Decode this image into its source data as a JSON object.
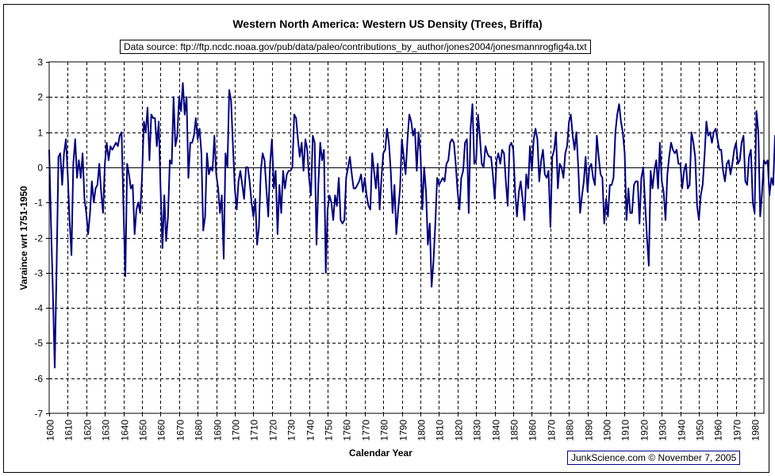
{
  "chart_data": {
    "type": "line",
    "title": "Western North America: Western US Density (Trees, Briffa)",
    "subtitle": "Data source: ftp://ftp.ncdc.noaa.gov/pub/data/paleo/contributions_by_author/jones2004/jonesmannrogfig4a.txt",
    "xlabel": "Calendar Year",
    "ylabel": "Varaince  wrt 1751-1950",
    "xlim": [
      1600,
      1985
    ],
    "ylim": [
      -7,
      3
    ],
    "grid": true,
    "x_ticks": [
      1600,
      1610,
      1620,
      1630,
      1640,
      1650,
      1660,
      1670,
      1680,
      1690,
      1700,
      1710,
      1720,
      1730,
      1740,
      1750,
      1760,
      1770,
      1780,
      1790,
      1800,
      1810,
      1820,
      1830,
      1840,
      1850,
      1860,
      1870,
      1880,
      1890,
      1900,
      1910,
      1920,
      1930,
      1940,
      1950,
      1960,
      1970,
      1980
    ],
    "y_ticks": [
      3,
      2,
      1,
      0,
      -1,
      -2,
      -3,
      -4,
      -5,
      -6,
      -7
    ],
    "line_color": "#000080",
    "series": [
      {
        "name": "Western US Density",
        "x_start": 1600,
        "step": 1,
        "values": [
          0.5,
          -1.6,
          -3.6,
          -5.7,
          -2.8,
          0.3,
          0.4,
          -0.5,
          0.4,
          0.8,
          -0.2,
          -1.5,
          -2.5,
          0.1,
          0.8,
          -0.3,
          0.2,
          -0.3,
          0.4,
          -0.9,
          -1.3,
          -1.9,
          -1.3,
          -0.4,
          -1.0,
          -0.6,
          -0.5,
          0.1,
          -0.7,
          -1.3,
          0.1,
          0.7,
          0.2,
          0.6,
          0.5,
          0.6,
          0.7,
          0.6,
          0.9,
          1.0,
          -1.1,
          -3.1,
          0.1,
          -0.2,
          -0.6,
          -0.5,
          -1.9,
          -1.2,
          -1.0,
          -1.3,
          -0.3,
          1.3,
          1.0,
          1.7,
          0.2,
          1.5,
          1.4,
          1.4,
          0.6,
          1.3,
          -0.6,
          -2.3,
          -0.8,
          -2.1,
          -1.4,
          0.2,
          0.1,
          2.0,
          0.6,
          0.9,
          2.0,
          1.6,
          2.4,
          1.5,
          2.0,
          -0.3,
          0.7,
          0.7,
          0.9,
          1.4,
          0.8,
          1.1,
          0.4,
          -1.8,
          -1.4,
          0.4,
          -0.2,
          0.0,
          -0.1,
          0.9,
          -0.2,
          -0.6,
          -1.3,
          -0.8,
          -2.6,
          0.4,
          0.0,
          2.2,
          1.9,
          0.6,
          -0.6,
          -1.2,
          -0.4,
          -0.1,
          -0.5,
          -0.9,
          0.0,
          0.0,
          -0.4,
          -1.0,
          -1.4,
          -0.9,
          -2.2,
          -1.7,
          -0.1,
          0.4,
          0.2,
          -0.6,
          -1.4,
          0.1,
          0.8,
          -0.6,
          -0.1,
          -1.9,
          -0.5,
          -1.3,
          -0.1,
          -0.6,
          -0.2,
          -0.1,
          -0.1,
          0.0,
          1.5,
          1.4,
          0.8,
          0.3,
          0.7,
          -0.1,
          0.8,
          0.5,
          -0.3,
          -0.8,
          0.9,
          0.7,
          -2.2,
          -0.5,
          0.7,
          0.2,
          0.5,
          -3.0,
          -1.2,
          -0.8,
          -1.0,
          -1.5,
          -0.8,
          -1.1,
          -0.3,
          -1.5,
          -1.6,
          -1.5,
          -0.3,
          0.0,
          0.3,
          -0.2,
          -0.6,
          -0.6,
          -0.5,
          -0.4,
          -0.2,
          -0.7,
          -0.3,
          -0.8,
          -1.1,
          -1.2,
          0.4,
          -0.1,
          -0.6,
          0.1,
          -1.2,
          -0.3,
          0.4,
          0.5,
          1.1,
          0.7,
          -0.1,
          -1.3,
          -0.5,
          -1.9,
          -1.2,
          -0.6,
          0.8,
          0.3,
          -0.2,
          0.8,
          1.5,
          1.3,
          0.9,
          1.1,
          -0.1,
          1.0,
          0.4,
          -1.2,
          0.0,
          -0.7,
          -2.2,
          -1.6,
          -3.4,
          -2.7,
          -1.6,
          -0.3,
          -0.5,
          -0.4,
          -0.3,
          -0.4,
          0.1,
          0.2,
          0.7,
          0.8,
          0.7,
          0.1,
          -0.7,
          -1.2,
          -0.3,
          -0.1,
          0.7,
          0.8,
          -1.3,
          1.1,
          1.8,
          0.1,
          0.2,
          1.5,
          0.9,
          0.1,
          0.0,
          0.6,
          0.4,
          0.3,
          0.3,
          -0.2,
          -0.9,
          0.2,
          0.4,
          0.1,
          0.5,
          0.4,
          -0.4,
          -1.1,
          0.6,
          0.7,
          0.5,
          -0.7,
          -1.4,
          -0.7,
          -0.4,
          -0.9,
          -1.5,
          -0.2,
          -0.6,
          0.6,
          -0.1,
          0.8,
          1.1,
          0.8,
          -0.4,
          0.2,
          0.5,
          -0.2,
          -0.3,
          -0.1,
          -1.7,
          0.3,
          0.5,
          1.0,
          -0.6,
          0.1,
          0.0,
          -0.3,
          0.4,
          0.6,
          1.3,
          1.5,
          0.9,
          0.5,
          1.0,
          0.0,
          -1.3,
          -0.8,
          -0.4,
          0.3,
          -0.7,
          0.0,
          0.1,
          -0.3,
          -0.5,
          0.9,
          0.3,
          -0.2,
          -0.3,
          -1.6,
          -0.9,
          -1.4,
          -0.5,
          -0.5,
          -0.3,
          1.0,
          1.5,
          1.8,
          1.3,
          1.0,
          0.4,
          -1.5,
          -0.6,
          -1.3,
          -1.3,
          -0.5,
          -0.4,
          -0.4,
          -1.6,
          -0.3,
          0.0,
          -1.0,
          -2.0,
          -2.8,
          -0.1,
          -0.6,
          -0.1,
          0.2,
          -0.6,
          0.7,
          -0.4,
          -0.7,
          -1.5,
          -0.2,
          0.3,
          0.7,
          0.5,
          0.4,
          0.5,
          0.1,
          0.1,
          -0.6,
          -0.1,
          0.1,
          -0.6,
          -0.5,
          1.0,
          0.7,
          0.3,
          -1.1,
          -1.5,
          -0.8,
          -0.5,
          0.3,
          1.3,
          0.9,
          1.0,
          0.7,
          1.0,
          1.1,
          0.8,
          0.5,
          0.5,
          -0.1,
          -0.4,
          0.1,
          0.2,
          -0.2,
          0.1,
          0.5,
          0.7,
          0.1,
          0.2,
          0.7,
          0.9,
          -0.4,
          -0.5,
          0.3,
          0.5,
          -1.0,
          -1.3,
          1.6,
          1.0,
          -1.4,
          -0.7,
          0.2,
          0.1,
          0.2,
          -0.8,
          -0.3,
          -0.5,
          0.9,
          0.3,
          -0.1,
          0.9,
          1.2,
          0.8,
          0.5,
          0.1
        ]
      }
    ]
  },
  "credit": "JunkScience.com ©  November 7, 2005"
}
